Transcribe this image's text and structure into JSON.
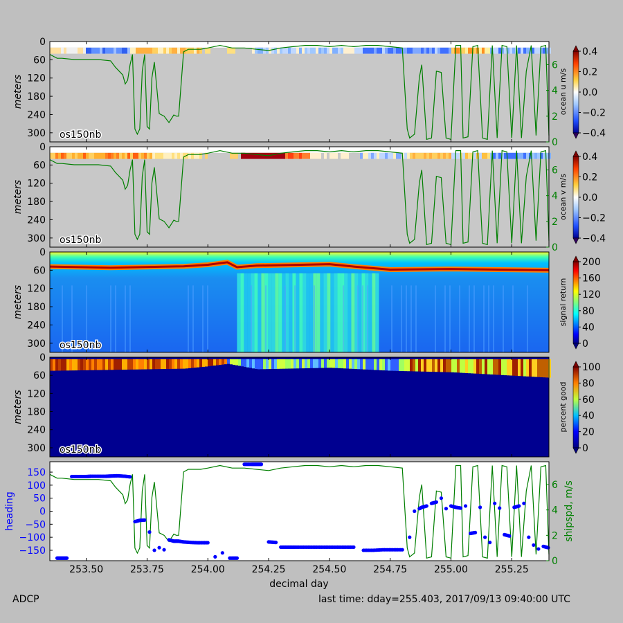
{
  "figure": {
    "footer_left": "ADCP",
    "footer_right": "last time: dday=255.403,  2017/09/13 09:40:00 UTC",
    "xlabel": "decimal day",
    "x_ticks": [
      "253.50",
      "253.75",
      "254.00",
      "254.25",
      "254.50",
      "254.75",
      "255.00",
      "255.25"
    ],
    "colors": {
      "background": "#bfbfbf",
      "nodata": "#c8c8c8",
      "shipspd_line": "#007f00",
      "heading_dots": "#0000ff",
      "axis_green": "#008000"
    }
  },
  "chart_data": [
    {
      "type": "heatmap",
      "id": "ocean_u",
      "label": "os150nb",
      "ylabel": "meters",
      "colorbar_label": "ocean u m/s",
      "colorbar_ticks": [
        "0.4",
        "0.2",
        "0.0",
        "−0.2",
        "−0.4"
      ],
      "clim": [
        -0.4,
        0.4
      ],
      "depth_ticks": [
        "0",
        "60",
        "120",
        "180",
        "240",
        "300"
      ],
      "depth_range": [
        0,
        330
      ],
      "xlim": [
        253.35,
        255.403
      ],
      "right_ticks": [
        "6",
        "4",
        "2",
        "0"
      ],
      "right_range": [
        0,
        7.8
      ]
    },
    {
      "type": "heatmap",
      "id": "ocean_v",
      "label": "os150nb",
      "ylabel": "meters",
      "colorbar_label": "ocean v m/s",
      "colorbar_ticks": [
        "0.4",
        "0.2",
        "0.0",
        "−0.2",
        "−0.4"
      ],
      "clim": [
        -0.4,
        0.4
      ],
      "depth_ticks": [
        "0",
        "60",
        "120",
        "180",
        "240",
        "300"
      ],
      "depth_range": [
        0,
        330
      ],
      "xlim": [
        253.35,
        255.403
      ],
      "right_ticks": [
        "6",
        "4",
        "2",
        "0"
      ],
      "right_range": [
        0,
        7.8
      ]
    },
    {
      "type": "heatmap",
      "id": "signal_return",
      "label": "os150nb",
      "ylabel": "meters",
      "colorbar_label": "signal return",
      "colorbar_ticks": [
        "200",
        "160",
        "120",
        "80",
        "40",
        "0"
      ],
      "clim": [
        0,
        200
      ],
      "depth_ticks": [
        "0",
        "60",
        "120",
        "180",
        "240",
        "300"
      ],
      "depth_range": [
        0,
        330
      ],
      "xlim": [
        253.35,
        255.403
      ]
    },
    {
      "type": "heatmap",
      "id": "percent_good",
      "label": "os150nb",
      "ylabel": "meters",
      "colorbar_label": "percent good",
      "colorbar_ticks": [
        "100",
        "80",
        "60",
        "40",
        "20",
        "0"
      ],
      "clim": [
        0,
        100
      ],
      "depth_ticks": [
        "0",
        "60",
        "120",
        "180",
        "240",
        "300"
      ],
      "depth_range": [
        0,
        330
      ],
      "xlim": [
        253.35,
        255.403
      ]
    },
    {
      "type": "scatter",
      "id": "heading_shipspd",
      "ylabel": "heading",
      "ylabel_right": "shipspd, m/s",
      "y_ticks": [
        "150",
        "100",
        "50",
        "0",
        "−50",
        "−100",
        "−150"
      ],
      "ylim": [
        -190,
        190
      ],
      "right_ticks": [
        "6",
        "4",
        "2",
        "0"
      ],
      "right_range": [
        0,
        7.8
      ],
      "xlim": [
        253.35,
        255.403
      ]
    }
  ],
  "shipspd_series": {
    "x": [
      253.35,
      253.38,
      253.4,
      253.45,
      253.5,
      253.55,
      253.6,
      253.62,
      253.65,
      253.66,
      253.67,
      253.68,
      253.69,
      253.7,
      253.71,
      253.72,
      253.73,
      253.74,
      253.75,
      253.76,
      253.77,
      253.78,
      253.8,
      253.82,
      253.84,
      253.86,
      253.87,
      253.88,
      253.9,
      253.92,
      253.93,
      253.95,
      253.97,
      254.0,
      254.05,
      254.1,
      254.15,
      254.2,
      254.25,
      254.3,
      254.35,
      254.4,
      254.45,
      254.5,
      254.55,
      254.6,
      254.65,
      254.7,
      254.75,
      254.8,
      254.82,
      254.83,
      254.85,
      254.87,
      254.88,
      254.9,
      254.92,
      254.94,
      254.96,
      254.98,
      255.0,
      255.02,
      255.04,
      255.05,
      255.07,
      255.09,
      255.11,
      255.13,
      255.15,
      255.17,
      255.19,
      255.21,
      255.23,
      255.25,
      255.27,
      255.29,
      255.31,
      255.33,
      255.35,
      255.37,
      255.39,
      255.403
    ],
    "spd": [
      6.8,
      6.5,
      6.5,
      6.4,
      6.4,
      6.4,
      6.3,
      5.8,
      5.2,
      4.5,
      4.8,
      6.0,
      6.8,
      1.0,
      0.6,
      1.0,
      5.5,
      6.8,
      1.2,
      1.0,
      5.0,
      6.2,
      2.2,
      2.0,
      1.5,
      2.1,
      2.0,
      2.0,
      7.0,
      7.2,
      7.2,
      7.2,
      7.2,
      7.3,
      7.5,
      7.3,
      7.3,
      7.2,
      7.1,
      7.3,
      7.4,
      7.5,
      7.5,
      7.4,
      7.5,
      7.4,
      7.5,
      7.5,
      7.4,
      7.3,
      1.0,
      0.3,
      0.6,
      5.0,
      6.0,
      0.2,
      0.3,
      5.5,
      5.4,
      0.3,
      0.2,
      7.5,
      7.5,
      0.3,
      0.4,
      7.4,
      7.5,
      0.3,
      0.2,
      7.5,
      0.3,
      7.5,
      7.4,
      0.3,
      7.5,
      0.3,
      5.5,
      7.5,
      0.5,
      7.4,
      7.5,
      0.5
    ]
  },
  "heading_series": {
    "x": [
      253.38,
      253.4,
      253.42,
      253.44,
      253.46,
      253.48,
      253.5,
      253.52,
      253.55,
      253.58,
      253.6,
      253.63,
      253.66,
      253.68,
      253.7,
      253.72,
      253.74,
      253.76,
      253.78,
      253.8,
      253.82,
      253.84,
      253.86,
      253.88,
      253.9,
      253.93,
      253.96,
      254.0,
      254.03,
      254.06,
      254.09,
      254.12,
      254.15,
      254.18,
      254.2,
      254.22,
      254.25,
      254.28,
      254.3,
      254.33,
      254.36,
      254.4,
      254.44,
      254.48,
      254.52,
      254.56,
      254.6,
      254.64,
      254.68,
      254.72,
      254.76,
      254.8,
      254.83,
      254.85,
      254.87,
      254.88,
      254.9,
      254.92,
      254.94,
      254.96,
      254.98,
      255.0,
      255.02,
      255.04,
      255.06,
      255.08,
      255.1,
      255.12,
      255.14,
      255.16,
      255.18,
      255.2,
      255.22,
      255.24,
      255.26,
      255.28,
      255.3,
      255.32,
      255.34,
      255.36,
      255.38,
      255.4
    ],
    "hdg": [
      -180,
      -180,
      -180,
      133,
      133,
      133,
      133,
      134,
      134,
      134,
      135,
      136,
      134,
      132,
      -40,
      -35,
      -34,
      -80,
      -150,
      -140,
      -148,
      -110,
      -115,
      -115,
      -118,
      -120,
      -121,
      -121,
      -175,
      -160,
      -180,
      -180,
      180,
      180,
      180,
      180,
      -118,
      -120,
      -138,
      -138,
      -138,
      -138,
      -138,
      -138,
      -138,
      -138,
      -138,
      -150,
      -150,
      -148,
      -148,
      -148,
      -100,
      0,
      10,
      15,
      20,
      30,
      35,
      50,
      10,
      20,
      15,
      12,
      20,
      -85,
      -82,
      15,
      -100,
      -120,
      30,
      12,
      -90,
      -95,
      15,
      20,
      30,
      -100,
      -130,
      -145,
      -135,
      -140
    ]
  }
}
